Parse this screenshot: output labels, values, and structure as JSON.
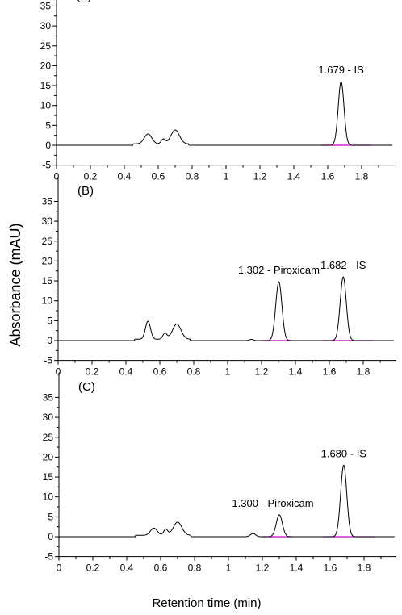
{
  "figure": {
    "ylabel": "Absorbance (mAU)",
    "xlabel": "Retention time (min)"
  },
  "chart_data": [
    {
      "type": "line",
      "panel": "(A)",
      "xlim": [
        0,
        2.0
      ],
      "ylim": [
        -5,
        40
      ],
      "xticks": [
        "0",
        "0.2",
        "0.4",
        "0.6",
        "0.8",
        "1",
        "1.2",
        "1.4",
        "1.6",
        "1.8"
      ],
      "yticks": [
        "-5",
        "0",
        "5",
        "10",
        "15",
        "20",
        "25",
        "30",
        "35"
      ],
      "grid": false,
      "baseline_color": "#cc00cc",
      "trace_color": "#000000",
      "baseline_segments": [
        [
          1.56,
          1.86
        ]
      ],
      "peaks": [
        {
          "rt": 0.54,
          "height": 2.5,
          "width": 0.022
        },
        {
          "rt": 0.63,
          "height": 1.2,
          "width": 0.012
        },
        {
          "rt": 0.7,
          "height": 3.5,
          "width": 0.025
        }
      ],
      "labeled_peaks": [
        {
          "rt": 1.679,
          "height": 16,
          "width": 0.017,
          "label": "1.679 - IS"
        }
      ]
    },
    {
      "type": "line",
      "panel": "(B)",
      "xlim": [
        0,
        2.0
      ],
      "ylim": [
        -5,
        40
      ],
      "xticks": [
        "0",
        "0.2",
        "0.4",
        "0.6",
        "0.8",
        "1",
        "1.2",
        "1.4",
        "1.6",
        "1.8"
      ],
      "yticks": [
        "-5",
        "0",
        "5",
        "10",
        "15",
        "20",
        "25",
        "30",
        "35"
      ],
      "grid": false,
      "baseline_color": "#cc00cc",
      "trace_color": "#000000",
      "baseline_segments": [
        [
          1.2,
          1.38
        ],
        [
          1.56,
          1.86
        ]
      ],
      "peaks": [
        {
          "rt": 0.53,
          "height": 4.5,
          "width": 0.015
        },
        {
          "rt": 0.63,
          "height": 1.5,
          "width": 0.012
        },
        {
          "rt": 0.7,
          "height": 3.8,
          "width": 0.025
        },
        {
          "rt": 1.14,
          "height": 0.3,
          "width": 0.012
        }
      ],
      "labeled_peaks": [
        {
          "rt": 1.302,
          "height": 14.8,
          "width": 0.018,
          "label": "1.302 - Piroxicam"
        },
        {
          "rt": 1.682,
          "height": 16,
          "width": 0.018,
          "label": "1.682 - IS"
        }
      ]
    },
    {
      "type": "line",
      "panel": "(C)",
      "xlim": [
        0,
        2.0
      ],
      "ylim": [
        -5,
        40
      ],
      "xticks": [
        "0",
        "0.2",
        "0.4",
        "0.6",
        "0.8",
        "1",
        "1.2",
        "1.4",
        "1.6",
        "1.8"
      ],
      "yticks": [
        "-5",
        "0",
        "5",
        "10",
        "15",
        "20",
        "25",
        "30",
        "35"
      ],
      "grid": false,
      "baseline_color": "#cc00cc",
      "trace_color": "#000000",
      "baseline_segments": [
        [
          1.2,
          1.38
        ],
        [
          1.56,
          1.86
        ]
      ],
      "peaks": [
        {
          "rt": 0.56,
          "height": 1.8,
          "width": 0.02
        },
        {
          "rt": 0.63,
          "height": 1.5,
          "width": 0.012
        },
        {
          "rt": 0.7,
          "height": 3.3,
          "width": 0.025
        },
        {
          "rt": 1.145,
          "height": 0.8,
          "width": 0.015
        }
      ],
      "labeled_peaks": [
        {
          "rt": 1.3,
          "height": 5.5,
          "width": 0.018,
          "label": "1.300 - Piroxicam"
        },
        {
          "rt": 1.68,
          "height": 18,
          "width": 0.018,
          "label": "1.680 - IS"
        }
      ]
    }
  ]
}
